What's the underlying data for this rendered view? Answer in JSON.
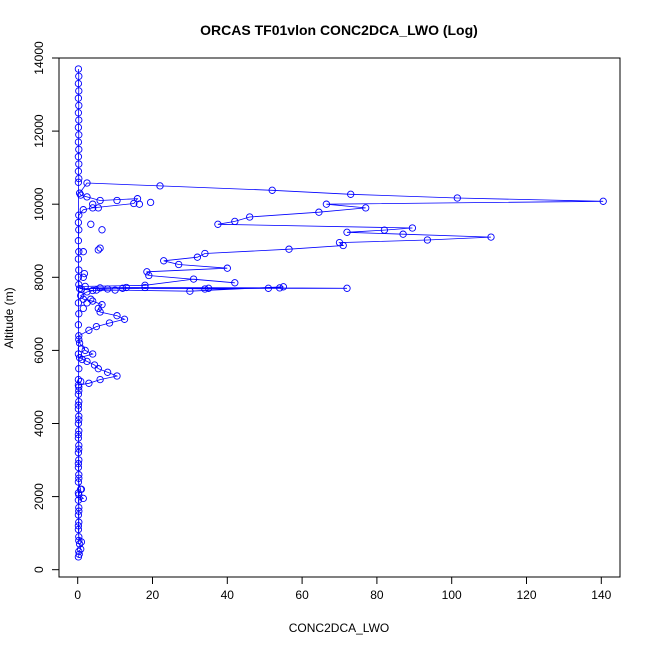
{
  "chart_data": {
    "type": "scatter",
    "title": "ORCAS TF01vlon CONC2DCA_LWO (Log)",
    "xlabel": "CONC2DCA_LWO",
    "ylabel": "Altitude (m)",
    "xlim": [
      -5,
      145
    ],
    "ylim": [
      -200,
      14000
    ],
    "xticks": [
      0,
      20,
      40,
      60,
      80,
      100,
      120,
      140
    ],
    "yticks": [
      0,
      2000,
      4000,
      6000,
      8000,
      10000,
      12000,
      14000
    ],
    "grid": false,
    "colors": {
      "series": "#0000ff",
      "axis": "#000000"
    },
    "series": [
      {
        "style": "line+open-circle",
        "points": [
          [
            0.2,
            350
          ],
          [
            0.4,
            420
          ],
          [
            0.3,
            500
          ],
          [
            0.8,
            560
          ],
          [
            0.5,
            700
          ],
          [
            1.0,
            760
          ],
          [
            0.3,
            900
          ],
          [
            0.2,
            1100
          ],
          [
            0.3,
            1300
          ],
          [
            0.2,
            1500
          ],
          [
            0.3,
            1700
          ],
          [
            0.2,
            1900
          ],
          [
            1.5,
            1950
          ],
          [
            0.3,
            2050
          ],
          [
            0.8,
            2200
          ],
          [
            0.2,
            2400
          ],
          [
            0.3,
            2600
          ],
          [
            0.2,
            2800
          ],
          [
            0.3,
            3000
          ],
          [
            0.2,
            3200
          ],
          [
            0.3,
            3400
          ],
          [
            0.2,
            3600
          ],
          [
            0.3,
            3800
          ],
          [
            0.2,
            4000
          ],
          [
            0.3,
            4200
          ],
          [
            0.2,
            4400
          ],
          [
            0.3,
            4600
          ],
          [
            0.2,
            4800
          ],
          [
            0.3,
            5000
          ],
          [
            0.2,
            5050
          ],
          [
            3,
            5100
          ],
          [
            6,
            5200
          ],
          [
            10.5,
            5300
          ],
          [
            8,
            5400
          ],
          [
            5.5,
            5500
          ],
          [
            4.5,
            5600
          ],
          [
            2.5,
            5700
          ],
          [
            0.5,
            5800
          ],
          [
            4,
            5900
          ],
          [
            2,
            6000
          ],
          [
            0.5,
            6200
          ],
          [
            0.3,
            6400
          ],
          [
            3,
            6550
          ],
          [
            5,
            6650
          ],
          [
            8.5,
            6750
          ],
          [
            12.5,
            6850
          ],
          [
            10.5,
            6950
          ],
          [
            6,
            7050
          ],
          [
            5.5,
            7150
          ],
          [
            6.5,
            7250
          ],
          [
            4,
            7350
          ],
          [
            1.5,
            7400
          ],
          [
            0.8,
            7500
          ],
          [
            2.5,
            7600
          ],
          [
            5,
            7650
          ],
          [
            8,
            7680
          ],
          [
            12,
            7700
          ],
          [
            18,
            7720
          ],
          [
            34,
            7680
          ],
          [
            51,
            7700
          ],
          [
            55,
            7740
          ],
          [
            30,
            7620
          ],
          [
            10,
            7650
          ],
          [
            4,
            7640
          ],
          [
            1,
            7680
          ],
          [
            6,
            7710
          ],
          [
            13,
            7720
          ],
          [
            54,
            7710
          ],
          [
            72,
            7700
          ],
          [
            35,
            7700
          ],
          [
            0.5,
            7690
          ],
          [
            2,
            7750
          ],
          [
            18,
            7780
          ],
          [
            31,
            7950
          ],
          [
            42,
            7850
          ],
          [
            19,
            8050
          ],
          [
            18.5,
            8150
          ],
          [
            40,
            8250
          ],
          [
            27,
            8350
          ],
          [
            23,
            8450
          ],
          [
            32,
            8550
          ],
          [
            34,
            8650
          ],
          [
            56.5,
            8770
          ],
          [
            71,
            8870
          ],
          [
            70,
            8950
          ],
          [
            93.5,
            9020
          ],
          [
            110.5,
            9100
          ],
          [
            87,
            9180
          ],
          [
            72,
            9230
          ],
          [
            82,
            9290
          ],
          [
            89.5,
            9350
          ],
          [
            37.5,
            9450
          ],
          [
            42,
            9530
          ],
          [
            46,
            9650
          ],
          [
            64.5,
            9780
          ],
          [
            77,
            9900
          ],
          [
            66.5,
            10000
          ],
          [
            140.5,
            10080
          ],
          [
            101.5,
            10170
          ],
          [
            73,
            10270
          ],
          [
            52,
            10380
          ],
          [
            22,
            10500
          ],
          [
            2.5,
            10580
          ],
          [
            0.5,
            10300
          ],
          [
            0.8,
            10250
          ],
          [
            6,
            10100
          ],
          [
            16,
            10150
          ],
          [
            15,
            10020
          ],
          [
            4,
            9900
          ],
          [
            1.5,
            9850
          ],
          [
            0.3,
            9700
          ],
          [
            0.2,
            9500
          ],
          [
            0.3,
            9300
          ],
          [
            0.2,
            9000
          ],
          [
            0.3,
            8700
          ],
          [
            0.2,
            8500
          ],
          [
            0.3,
            8200
          ],
          [
            0.2,
            8000
          ],
          [
            0.3,
            7800
          ],
          [
            0.2,
            7300
          ],
          [
            0.3,
            7000
          ],
          [
            0.2,
            6700
          ],
          [
            0.3,
            6300
          ],
          [
            0.2,
            5900
          ],
          [
            0.3,
            5500
          ],
          [
            0.2,
            5200
          ],
          [
            0.3,
            4900
          ],
          [
            0.2,
            4500
          ],
          [
            0.3,
            4100
          ],
          [
            0.2,
            3700
          ],
          [
            0.3,
            3300
          ],
          [
            0.2,
            2900
          ],
          [
            0.3,
            2500
          ],
          [
            0.2,
            2100
          ],
          [
            0.3,
            1600
          ],
          [
            0.2,
            1200
          ],
          [
            0.3,
            800
          ],
          [
            0.2,
            10600
          ],
          [
            0.3,
            10700
          ],
          [
            0.2,
            10900
          ],
          [
            0.3,
            11100
          ],
          [
            0.2,
            11300
          ],
          [
            0.3,
            11500
          ],
          [
            0.2,
            11700
          ],
          [
            0.3,
            11900
          ],
          [
            0.2,
            12100
          ],
          [
            0.3,
            12300
          ],
          [
            0.2,
            12500
          ],
          [
            0.3,
            12700
          ],
          [
            0.2,
            12900
          ],
          [
            0.3,
            13100
          ],
          [
            0.2,
            13300
          ],
          [
            0.3,
            13500
          ],
          [
            0.2,
            13700
          ]
        ]
      },
      {
        "style": "open-circle",
        "points": [
          [
            4,
            10000
          ],
          [
            5.5,
            9900
          ],
          [
            16.5,
            10000
          ],
          [
            19.5,
            10050
          ],
          [
            10.5,
            10100
          ],
          [
            2.5,
            10200
          ],
          [
            3.5,
            9450
          ],
          [
            6.5,
            9300
          ],
          [
            6,
            8800
          ],
          [
            5.5,
            8750
          ],
          [
            1.5,
            8700
          ],
          [
            1.8,
            8100
          ],
          [
            1.5,
            8000
          ],
          [
            3.5,
            7400
          ],
          [
            2.5,
            7300
          ],
          [
            1.5,
            7150
          ],
          [
            1,
            6050
          ],
          [
            1.2,
            5750
          ],
          [
            0.8,
            5150
          ],
          [
            1.0,
            2200
          ]
        ]
      }
    ]
  }
}
